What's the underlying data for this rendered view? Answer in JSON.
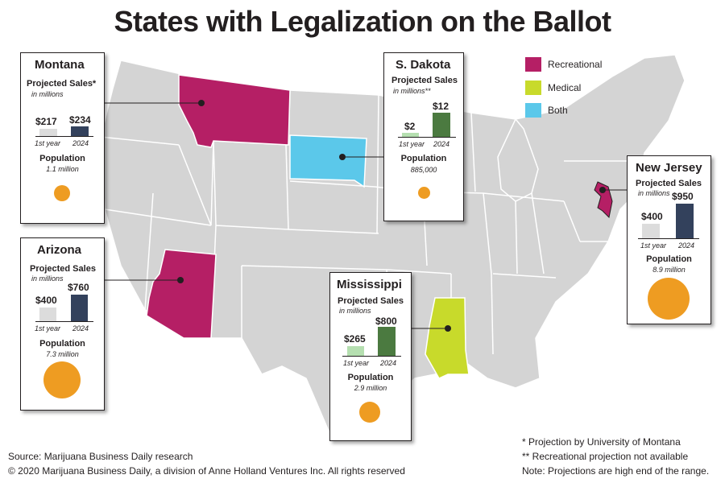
{
  "title": "States with Legalization on the Ballot",
  "legend": [
    {
      "label": "Recreational",
      "color": "#b51f65"
    },
    {
      "label": "Medical",
      "color": "#c8da2b"
    },
    {
      "label": "Both",
      "color": "#5bc8ea"
    }
  ],
  "colors": {
    "map_fill": "#d4d4d4",
    "map_border": "#ffffff",
    "population_dot": "#ee9c22",
    "first_year_bar": "#dcdcdc",
    "bar_2024_navy": "#33415c",
    "first_year_bar_green": "#b5dfb0",
    "bar_2024_green": "#4b7a40"
  },
  "states": [
    {
      "state": "Montana",
      "projected_sales_label": "Projected Sales*",
      "units": "in millions",
      "first_year_value": "$217",
      "value_2024": "$234",
      "first_year_label": "1st year",
      "label_2024": "2024",
      "population_label": "Population",
      "population": "1.1 million"
    },
    {
      "state": "S. Dakota",
      "projected_sales_label": "Projected Sales",
      "units": "in millions**",
      "first_year_value": "$2",
      "value_2024": "$12",
      "first_year_label": "1st year",
      "label_2024": "2024",
      "population_label": "Population",
      "population": "885,000"
    },
    {
      "state": "New Jersey",
      "projected_sales_label": "Projected Sales",
      "units": "in millions",
      "first_year_value": "$400",
      "value_2024": "$950",
      "first_year_label": "1st year",
      "label_2024": "2024",
      "population_label": "Population",
      "population": "8.9 million"
    },
    {
      "state": "Arizona",
      "projected_sales_label": "Projected Sales",
      "units": "in millions",
      "first_year_value": "$400",
      "value_2024": "$760",
      "first_year_label": "1st year",
      "label_2024": "2024",
      "population_label": "Population",
      "population": "7.3 million"
    },
    {
      "state": "Mississippi",
      "projected_sales_label": "Projected Sales",
      "units": "in millions",
      "first_year_value": "$265",
      "value_2024": "$800",
      "first_year_label": "1st year",
      "label_2024": "2024",
      "population_label": "Population",
      "population": "2.9 million"
    }
  ],
  "footer": {
    "source": "Source: Marijuana Business Daily research",
    "copyright": "© 2020 Marijuana Business Daily, a division of Anne Holland Ventures Inc. All rights reserved",
    "note1": "* Projection by University of Montana",
    "note2": "** Recreational projection not available",
    "note3": "Note: Projections are high end of the range."
  }
}
